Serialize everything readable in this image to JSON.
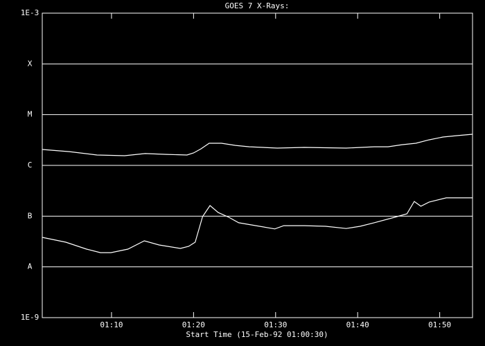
{
  "chart_data": {
    "type": "line",
    "title": "GOES 7 X-Rays:",
    "x_label": "Start Time (15-Feb-92 01:00:30)",
    "background": "#000000",
    "foreground": "#ffffff",
    "ylog": true,
    "grid": true,
    "xlim": [
      1.56,
      54.0
    ],
    "xticks": [
      {
        "value": 10,
        "label": "01:10"
      },
      {
        "value": 20,
        "label": "01:20"
      },
      {
        "value": 30,
        "label": "01:30"
      },
      {
        "value": 40,
        "label": "01:40"
      },
      {
        "value": 50,
        "label": "01:50"
      }
    ],
    "ylim": [
      1e-09,
      0.001
    ],
    "yticks": [
      {
        "value": 1e-09,
        "label": "1E-9"
      },
      {
        "value": 1e-08,
        "label": "A"
      },
      {
        "value": 1e-07,
        "label": "B"
      },
      {
        "value": 1e-06,
        "label": "C"
      },
      {
        "value": 1e-05,
        "label": "M"
      },
      {
        "value": 0.0001,
        "label": "X"
      },
      {
        "value": 0.001,
        "label": "1E-3"
      }
    ],
    "series": [
      {
        "color": "#ffffff",
        "x": [
          1.56,
          4.85,
          8.23,
          11.6,
          14.1,
          16.7,
          19.2,
          20.0,
          20.9,
          21.9,
          23.4,
          25.1,
          26.8,
          30.2,
          33.5,
          38.6,
          42.0,
          43.7,
          45.4,
          47.1,
          48.7,
          50.4,
          52.1,
          54.0
        ],
        "values": [
          2.06e-06,
          1.87e-06,
          1.6e-06,
          1.55e-06,
          1.71e-06,
          1.65e-06,
          1.6e-06,
          1.76e-06,
          2.12e-06,
          2.73e-06,
          2.73e-06,
          2.48e-06,
          2.33e-06,
          2.19e-06,
          2.26e-06,
          2.19e-06,
          2.33e-06,
          2.33e-06,
          2.56e-06,
          2.73e-06,
          3.19e-06,
          3.62e-06,
          3.86e-06,
          4.11e-06
        ]
      },
      {
        "color": "#ffffff",
        "x": [
          1.56,
          4.43,
          6.96,
          8.65,
          9.92,
          12.0,
          14.0,
          15.8,
          18.4,
          19.4,
          20.2,
          21.1,
          22.0,
          23.0,
          24.3,
          25.5,
          27.6,
          29.9,
          31.0,
          33.5,
          36.1,
          38.6,
          40.3,
          42.0,
          44.5,
          46.0,
          46.9,
          47.7,
          48.7,
          50.8,
          54.0
        ],
        "values": [
          3.82e-08,
          3.06e-08,
          2.24e-08,
          1.91e-08,
          1.91e-08,
          2.24e-08,
          3.26e-08,
          2.7e-08,
          2.31e-08,
          2.54e-08,
          3.06e-08,
          9.8e-08,
          1.62e-07,
          1.18e-07,
          9.5e-08,
          7.4e-08,
          6.5e-08,
          5.6e-08,
          6.5e-08,
          6.5e-08,
          6.3e-08,
          5.7e-08,
          6.3e-08,
          7.4e-08,
          9.5e-08,
          1.11e-07,
          1.95e-07,
          1.57e-07,
          1.89e-07,
          2.29e-07,
          2.29e-07
        ]
      }
    ]
  }
}
